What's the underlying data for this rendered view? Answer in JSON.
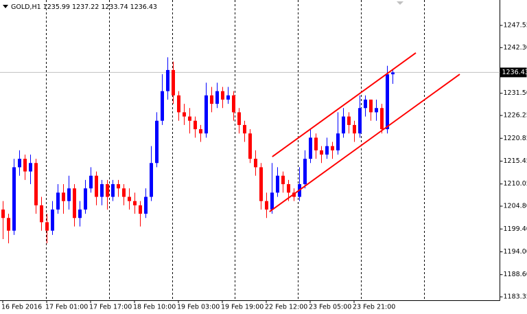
{
  "chart_data": {
    "type": "candlestick",
    "symbol": "GOLD,H1",
    "categories": [
      "16 Feb 2016",
      null,
      null,
      null,
      null,
      null,
      null,
      null,
      "17 Feb 01:00",
      null,
      null,
      null,
      null,
      null,
      null,
      null,
      "17 Feb 17:00",
      null,
      null,
      null,
      null,
      null,
      null,
      null,
      "18 Feb 10:00",
      null,
      null,
      null,
      null,
      null,
      null,
      null,
      "19 Feb 03:00",
      null,
      null,
      null,
      null,
      null,
      null,
      null,
      "19 Feb 19:00",
      null,
      null,
      null,
      null,
      null,
      null,
      null,
      "22 Feb 12:00",
      null,
      null,
      null,
      null,
      null,
      null,
      null,
      "23 Feb 05:00",
      null,
      null,
      null,
      null,
      null,
      null,
      null,
      "23 Feb 21:00",
      null,
      null,
      null,
      null,
      null,
      null,
      null
    ],
    "open": [
      1204,
      1202,
      1199,
      1214,
      1216,
      1213,
      1215,
      1205,
      1201,
      1199,
      1204,
      1208,
      1206,
      1209,
      1202,
      1204,
      1209,
      1212,
      1207,
      1210,
      1207,
      1210,
      1209,
      1207,
      1206,
      1205,
      1203,
      1207,
      1215,
      1225,
      1232,
      1237,
      1231,
      1227,
      1226,
      1225,
      1223,
      1222,
      1231,
      1229,
      1232,
      1230,
      1231,
      1227,
      1224,
      1222,
      1216,
      1214,
      1206,
      1204,
      1208,
      1212,
      1210,
      1208,
      1207,
      1210,
      1216,
      1221,
      1218,
      1217,
      1219,
      1218,
      1222,
      1226,
      1224,
      1222,
      1228,
      1230,
      1227,
      1228,
      1223,
      1235.99
    ],
    "high": [
      1206,
      1203,
      1216,
      1218,
      1217,
      1217,
      1216,
      1207,
      1203,
      1206,
      1210,
      1210,
      1212,
      1210,
      1206,
      1211,
      1214,
      1213,
      1211,
      1211,
      1211,
      1211,
      1210,
      1209,
      1208,
      1206,
      1209,
      1219,
      1227,
      1236,
      1240,
      1239,
      1232,
      1229,
      1228,
      1226,
      1224,
      1234,
      1233,
      1234,
      1233,
      1233,
      1232,
      1228,
      1225,
      1223,
      1218,
      1215,
      1208,
      1215,
      1214,
      1213,
      1211,
      1209,
      1214,
      1218,
      1223,
      1222,
      1219,
      1221,
      1220,
      1227,
      1228,
      1227,
      1225,
      1231,
      1231,
      1230,
      1230,
      1229,
      1238,
      1237.22
    ],
    "low": [
      1197,
      1196,
      1198,
      1212,
      1211,
      1210,
      1203,
      1199,
      1196,
      1198,
      1203,
      1203,
      1204,
      1200,
      1200,
      1203,
      1208,
      1205,
      1205,
      1204,
      1206,
      1207,
      1205,
      1204,
      1203,
      1200,
      1202,
      1206,
      1214,
      1224,
      1230,
      1229,
      1225,
      1224,
      1222,
      1221,
      1220,
      1221,
      1227,
      1228,
      1228,
      1229,
      1225,
      1222,
      1220,
      1215,
      1212,
      1204,
      1202,
      1203,
      1207,
      1208,
      1206,
      1206,
      1206,
      1209,
      1215,
      1216,
      1215,
      1216,
      1216,
      1217,
      1221,
      1222,
      1220,
      1221,
      1226,
      1225,
      1225,
      1222,
      1222,
      1233.74
    ],
    "close": [
      1202,
      1199,
      1214,
      1216,
      1213,
      1215,
      1205,
      1201,
      1199,
      1204,
      1208,
      1206,
      1209,
      1202,
      1204,
      1209,
      1212,
      1207,
      1210,
      1207,
      1210,
      1209,
      1207,
      1206,
      1205,
      1203,
      1207,
      1215,
      1225,
      1232,
      1237,
      1231,
      1227,
      1226,
      1225,
      1223,
      1222,
      1231,
      1229,
      1232,
      1230,
      1231,
      1227,
      1224,
      1222,
      1216,
      1214,
      1206,
      1204,
      1208,
      1212,
      1210,
      1208,
      1207,
      1210,
      1216,
      1221,
      1218,
      1217,
      1219,
      1218,
      1222,
      1226,
      1224,
      1222,
      1228,
      1230,
      1227,
      1228,
      1223,
      1235.99,
      1236.43
    ],
    "up_color": "#0000ff",
    "down_color": "#ff0000",
    "trendlines": [
      {
        "x": [
          49.1,
          75.25
        ],
        "y": [
          1216.5,
          1241.05
        ],
        "color": "#ff0000"
      },
      {
        "x": [
          48.6,
          83.25
        ],
        "y": [
          1203.5,
          1236.0
        ],
        "color": "#ff0000"
      }
    ],
    "ylim": [
      1182.54,
      1253.56
    ],
    "yticks": [
      1247.55,
      {
        "value": 1242.3,
        "label": "1242.30"
      },
      {
        "value": 1231.5,
        "label": "1231.50"
      },
      1226.25,
      1220.85,
      1215.45,
      1210.05,
      {
        "value": 1204.8,
        "label": "1204.80"
      },
      {
        "value": 1199.4,
        "label": "1199.40"
      },
      {
        "value": 1194,
        "label": "1194.00"
      },
      {
        "value": 1188.6,
        "label": "1188.60"
      },
      1183.35
    ]
  }
}
